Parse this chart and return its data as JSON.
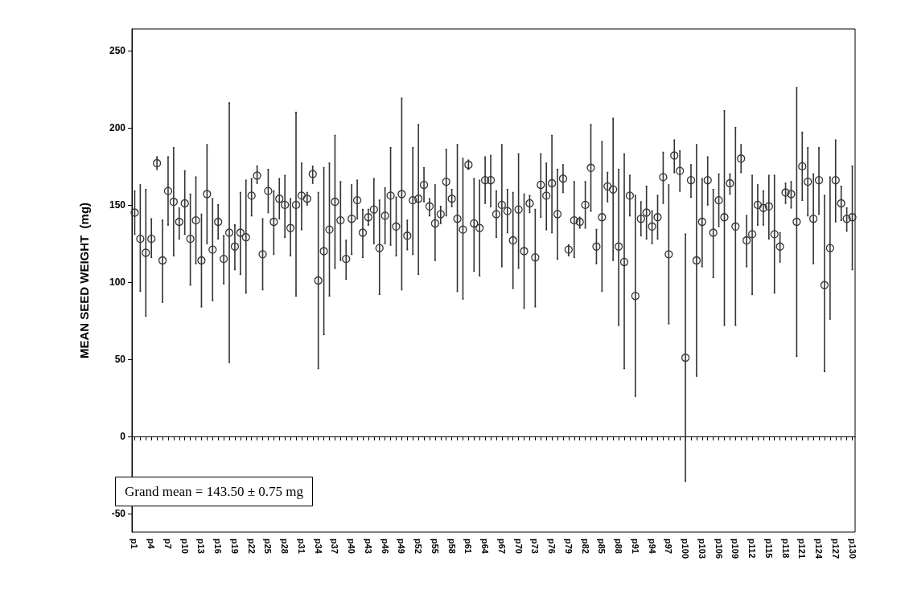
{
  "chart_data": {
    "type": "scatter",
    "ylabel": "MEAN SEED WEIGHT  (mg)",
    "annotations": [
      "Grand mean = 143.50 ± 0.75 mg"
    ],
    "categories": [
      "p1",
      null,
      null,
      "p4",
      null,
      null,
      "p7",
      null,
      null,
      "p10",
      null,
      null,
      "p13",
      null,
      null,
      "p16",
      null,
      null,
      "p19",
      null,
      null,
      "p22",
      null,
      null,
      "p25",
      null,
      null,
      "p28",
      null,
      null,
      "p31",
      null,
      null,
      "p34",
      null,
      null,
      "p37",
      null,
      null,
      "p40",
      null,
      null,
      "p43",
      null,
      null,
      "p46",
      null,
      null,
      "p49",
      null,
      null,
      "p52",
      null,
      null,
      "p55",
      null,
      null,
      "p58",
      null,
      null,
      "p61",
      null,
      null,
      "p64",
      null,
      null,
      "p67",
      null,
      null,
      "p70",
      null,
      null,
      "p73",
      null,
      null,
      "p76",
      null,
      null,
      "p79",
      null,
      null,
      "p82",
      null,
      null,
      "p85",
      null,
      null,
      "p88",
      null,
      null,
      "p91",
      null,
      null,
      "p94",
      null,
      null,
      "p97",
      null,
      null,
      "p100",
      null,
      null,
      "p103",
      null,
      null,
      "p106",
      null,
      null,
      "p109",
      null,
      null,
      "p112",
      null,
      null,
      "p115",
      null,
      null,
      "p118",
      null,
      null,
      "p121",
      null,
      null,
      "p124",
      null,
      null,
      "p127",
      null,
      null,
      "p130"
    ],
    "series": [
      {
        "color": "#333333",
        "values": [
          145,
          128,
          119,
          128,
          177,
          114,
          159,
          152,
          139,
          151,
          128,
          140,
          114,
          157,
          121,
          139,
          115,
          132,
          123,
          132,
          129,
          156,
          169,
          118,
          159,
          139,
          154,
          150,
          135,
          150,
          156,
          154,
          170,
          101,
          120,
          134,
          152,
          140,
          115,
          141,
          153,
          132,
          142,
          147,
          122,
          143,
          156,
          136,
          157,
          130,
          153,
          154,
          163,
          149,
          138,
          144,
          165,
          154,
          141,
          134,
          176,
          138,
          135,
          166,
          166,
          144,
          150,
          146,
          127,
          147,
          120,
          151,
          116,
          163,
          156,
          164,
          144,
          167,
          121,
          140,
          139,
          150,
          174,
          123,
          142,
          162,
          160,
          123,
          113,
          156,
          91,
          141,
          145,
          136,
          142,
          168,
          118,
          182,
          172,
          51,
          166,
          114,
          139,
          166,
          132,
          153,
          142,
          164,
          136,
          180,
          127,
          131,
          150,
          148,
          149,
          131,
          123,
          158,
          157,
          139,
          175,
          165,
          141,
          166,
          98,
          122,
          166,
          151,
          141,
          142
        ],
        "errors": [
          [
            131,
            159
          ],
          [
            94,
            163
          ],
          [
            78,
            160
          ],
          [
            116,
            141
          ],
          [
            173,
            181
          ],
          [
            87,
            140
          ],
          [
            137,
            181
          ],
          [
            117,
            187
          ],
          [
            128,
            148
          ],
          [
            131,
            172
          ],
          [
            98,
            157
          ],
          [
            112,
            168
          ],
          [
            84,
            144
          ],
          [
            125,
            189
          ],
          [
            88,
            154
          ],
          [
            128,
            150
          ],
          [
            99,
            130
          ],
          [
            48,
            216
          ],
          [
            108,
            137
          ],
          [
            105,
            158
          ],
          [
            93,
            166
          ],
          [
            143,
            167
          ],
          [
            164,
            175
          ],
          [
            95,
            141
          ],
          [
            145,
            173
          ],
          [
            118,
            159
          ],
          [
            141,
            167
          ],
          [
            129,
            169
          ],
          [
            117,
            154
          ],
          [
            91,
            210
          ],
          [
            134,
            177
          ],
          [
            150,
            158
          ],
          [
            164,
            175
          ],
          [
            44,
            158
          ],
          [
            66,
            174
          ],
          [
            91,
            177
          ],
          [
            109,
            195
          ],
          [
            114,
            165
          ],
          [
            102,
            127
          ],
          [
            118,
            163
          ],
          [
            141,
            166
          ],
          [
            116,
            147
          ],
          [
            137,
            147
          ],
          [
            125,
            167
          ],
          [
            92,
            153
          ],
          [
            125,
            161
          ],
          [
            124,
            187
          ],
          [
            117,
            155
          ],
          [
            95,
            219
          ],
          [
            121,
            140
          ],
          [
            118,
            187
          ],
          [
            105,
            202
          ],
          [
            152,
            174
          ],
          [
            143,
            154
          ],
          [
            114,
            163
          ],
          [
            138,
            149
          ],
          [
            143,
            186
          ],
          [
            149,
            160
          ],
          [
            94,
            189
          ],
          [
            89,
            180
          ],
          [
            173,
            179
          ],
          [
            107,
            167
          ],
          [
            104,
            166
          ],
          [
            151,
            181
          ],
          [
            149,
            182
          ],
          [
            129,
            159
          ],
          [
            110,
            189
          ],
          [
            132,
            160
          ],
          [
            96,
            158
          ],
          [
            109,
            183
          ],
          [
            83,
            157
          ],
          [
            145,
            156
          ],
          [
            84,
            147
          ],
          [
            142,
            183
          ],
          [
            134,
            177
          ],
          [
            132,
            195
          ],
          [
            115,
            173
          ],
          [
            158,
            176
          ],
          [
            117,
            124
          ],
          [
            116,
            165
          ],
          [
            135,
            142
          ],
          [
            135,
            165
          ],
          [
            146,
            202
          ],
          [
            112,
            134
          ],
          [
            94,
            191
          ],
          [
            152,
            171
          ],
          [
            114,
            206
          ],
          [
            72,
            173
          ],
          [
            44,
            183
          ],
          [
            143,
            169
          ],
          [
            26,
            156
          ],
          [
            130,
            152
          ],
          [
            128,
            162
          ],
          [
            125,
            146
          ],
          [
            128,
            156
          ],
          [
            151,
            184
          ],
          [
            73,
            163
          ],
          [
            171,
            192
          ],
          [
            159,
            185
          ],
          [
            -29,
            131
          ],
          [
            155,
            176
          ],
          [
            39,
            189
          ],
          [
            110,
            167
          ],
          [
            150,
            181
          ],
          [
            103,
            160
          ],
          [
            136,
            170
          ],
          [
            72,
            211
          ],
          [
            157,
            170
          ],
          [
            72,
            200
          ],
          [
            171,
            189
          ],
          [
            110,
            143
          ],
          [
            92,
            169
          ],
          [
            137,
            163
          ],
          [
            137,
            159
          ],
          [
            128,
            169
          ],
          [
            93,
            169
          ],
          [
            113,
            132
          ],
          [
            151,
            164
          ],
          [
            148,
            165
          ],
          [
            52,
            226
          ],
          [
            153,
            197
          ],
          [
            143,
            187
          ],
          [
            112,
            170
          ],
          [
            144,
            187
          ],
          [
            42,
            156
          ],
          [
            76,
            168
          ],
          [
            139,
            192
          ],
          [
            140,
            162
          ],
          [
            133,
            148
          ],
          [
            108,
            175
          ]
        ]
      }
    ],
    "ylim": [
      -62,
      264
    ],
    "yticks": [
      -50,
      0,
      50,
      100,
      150,
      200,
      250
    ],
    "marker": "circle"
  }
}
